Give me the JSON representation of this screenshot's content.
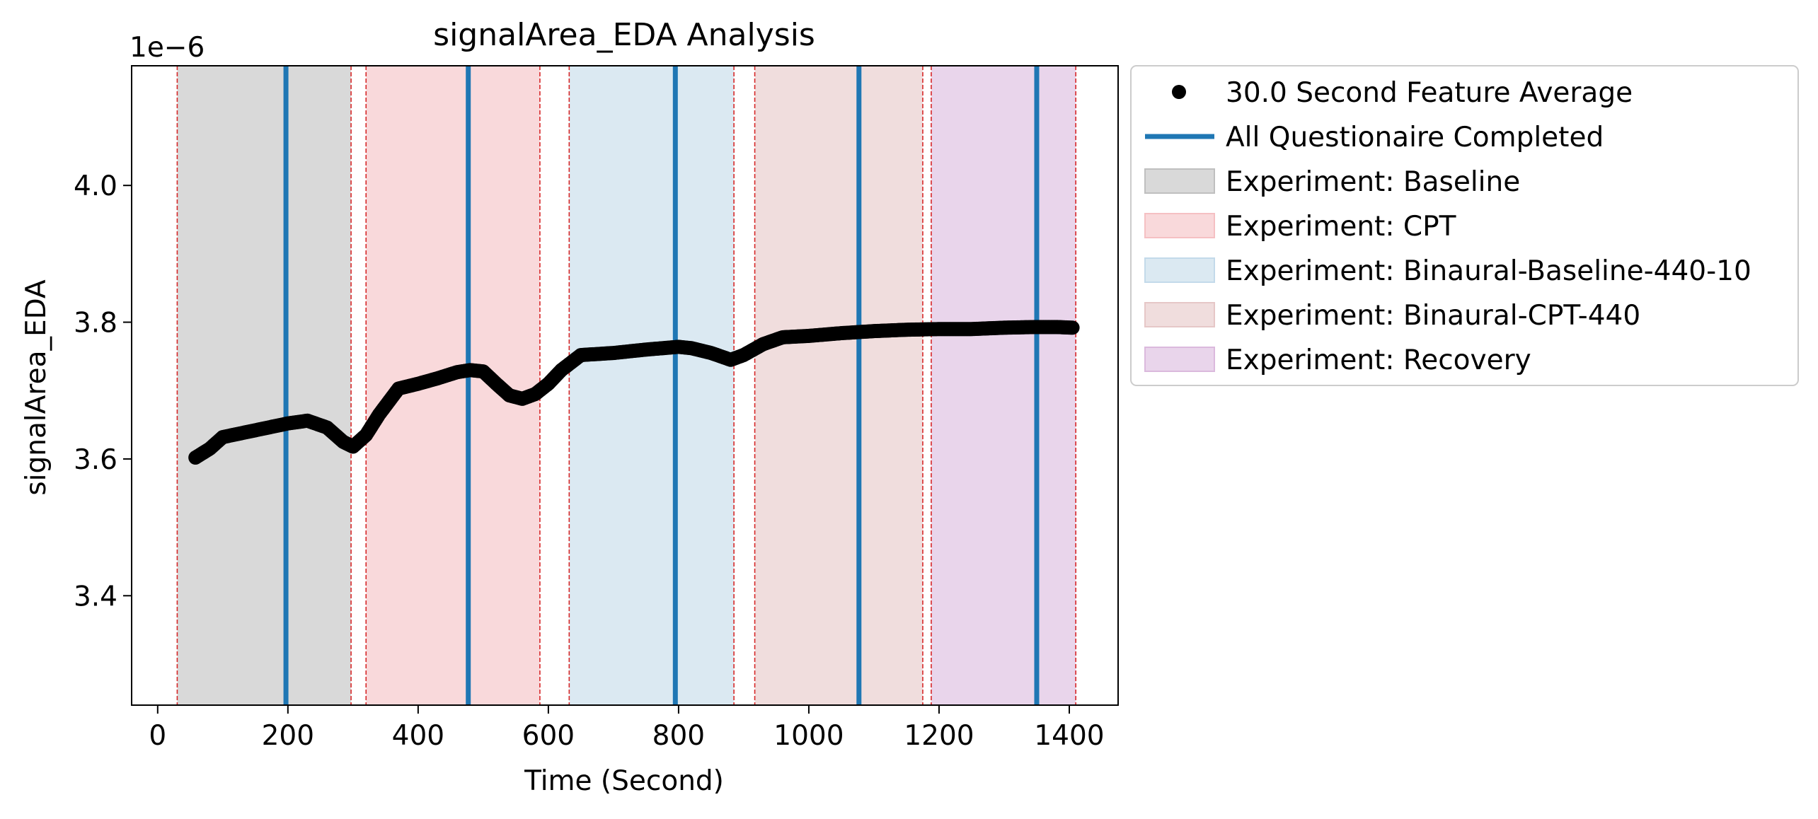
{
  "chart_data": {
    "type": "scatter",
    "title": "signalArea_EDA Analysis",
    "xlabel": "Time (Second)",
    "ylabel": "signalArea_EDA",
    "y_offset_label": "1e−6",
    "xlim": [
      -40,
      1475
    ],
    "ylim": [
      3.24,
      4.175
    ],
    "y_scale_factor": 1e-06,
    "x_ticks": [
      0,
      200,
      400,
      600,
      800,
      1000,
      1200,
      1400
    ],
    "x_tick_labels": [
      "0",
      "200",
      "400",
      "600",
      "800",
      "1000",
      "1200",
      "1400"
    ],
    "y_ticks": [
      3.4,
      3.6,
      3.8,
      4.0
    ],
    "y_tick_labels": [
      "3.4",
      "3.6",
      "3.8",
      "4.0"
    ],
    "grid": false,
    "legend_position": "outside-right-top",
    "series": [
      {
        "name": "30.0 Second Feature Average",
        "color": "#000000",
        "x": [
          58,
          80,
          100,
          150,
          200,
          230,
          260,
          285,
          300,
          320,
          340,
          370,
          400,
          430,
          460,
          480,
          500,
          520,
          540,
          560,
          580,
          600,
          620,
          650,
          700,
          750,
          800,
          820,
          850,
          880,
          900,
          930,
          960,
          1000,
          1050,
          1100,
          1150,
          1200,
          1250,
          1300,
          1350,
          1380,
          1405
        ],
        "y": [
          3.602,
          3.615,
          3.632,
          3.642,
          3.652,
          3.656,
          3.646,
          3.625,
          3.618,
          3.635,
          3.665,
          3.703,
          3.71,
          3.718,
          3.727,
          3.73,
          3.728,
          3.71,
          3.693,
          3.688,
          3.695,
          3.71,
          3.73,
          3.752,
          3.755,
          3.76,
          3.764,
          3.762,
          3.755,
          3.745,
          3.752,
          3.768,
          3.778,
          3.78,
          3.784,
          3.787,
          3.789,
          3.79,
          3.79,
          3.792,
          3.793,
          3.793,
          3.792
        ]
      }
    ],
    "questionnaire": {
      "name": "All Questionaire Completed",
      "color": "#1f77b4",
      "x": [
        197,
        477,
        795,
        1077,
        1350
      ]
    },
    "phases": [
      {
        "name": "Experiment: Baseline",
        "start": 30,
        "end": 297,
        "color": "#bfbfbf"
      },
      {
        "name": "Experiment: CPT",
        "start": 320,
        "end": 587,
        "color": "#f5c0c3"
      },
      {
        "name": "Experiment: Binaural-Baseline-440-10",
        "start": 632,
        "end": 885,
        "color": "#c3daea"
      },
      {
        "name": "Experiment: Binaural-CPT-440",
        "start": 917,
        "end": 1175,
        "color": "#e6c7c7"
      },
      {
        "name": "Experiment: Recovery",
        "start": 1188,
        "end": 1410,
        "color": "#dbb9dd"
      }
    ],
    "phase_boundary_color": "#d62728",
    "phase_boundaries": [
      30,
      297,
      320,
      587,
      632,
      885,
      917,
      1175,
      1188,
      1410
    ]
  }
}
